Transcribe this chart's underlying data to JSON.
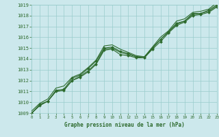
{
  "title": "Graphe pression niveau de la mer (hPa)",
  "bg_color": "#cce8ec",
  "grid_color": "#99cccc",
  "line_color": "#2d6a2d",
  "marker_color": "#2d6a2d",
  "xmin": 0,
  "xmax": 23,
  "ymin": 1009,
  "ymax": 1019,
  "series": [
    [
      1009.0,
      1009.8,
      1010.1,
      1011.1,
      1011.2,
      1012.2,
      1012.5,
      1013.1,
      1013.8,
      1015.0,
      1015.1,
      1014.7,
      1014.5,
      1014.2,
      1014.1,
      1015.0,
      1015.8,
      1016.5,
      1017.3,
      1017.5,
      1018.2,
      1018.2,
      1018.5,
      1019.0
    ],
    [
      1009.0,
      1009.7,
      1010.1,
      1011.0,
      1011.1,
      1012.0,
      1012.3,
      1012.8,
      1013.5,
      1014.8,
      1014.9,
      1014.4,
      1014.3,
      1014.1,
      1014.1,
      1014.9,
      1015.6,
      1016.4,
      1017.1,
      1017.4,
      1018.0,
      1018.1,
      1018.3,
      1018.8
    ],
    [
      1009.2,
      1009.9,
      1010.3,
      1011.3,
      1011.5,
      1012.3,
      1012.6,
      1013.2,
      1013.9,
      1015.2,
      1015.3,
      1014.9,
      1014.6,
      1014.3,
      1014.2,
      1015.1,
      1016.0,
      1016.6,
      1017.5,
      1017.7,
      1018.3,
      1018.4,
      1018.6,
      1019.2
    ],
    [
      1009.0,
      1009.7,
      1010.1,
      1011.0,
      1011.1,
      1012.0,
      1012.4,
      1012.9,
      1013.6,
      1014.9,
      1015.0,
      1014.6,
      1014.4,
      1014.2,
      1014.2,
      1015.0,
      1015.8,
      1016.5,
      1017.2,
      1017.5,
      1018.1,
      1018.2,
      1018.4,
      1018.9
    ]
  ],
  "yticks": [
    1009,
    1010,
    1011,
    1012,
    1013,
    1014,
    1015,
    1016,
    1017,
    1018,
    1019
  ],
  "xticks": [
    0,
    1,
    2,
    3,
    4,
    5,
    6,
    7,
    8,
    9,
    10,
    11,
    12,
    13,
    14,
    15,
    16,
    17,
    18,
    19,
    20,
    21,
    22,
    23
  ],
  "line_styles": [
    {
      "lw": 0.8,
      "marker": "D",
      "ms": 2.0
    },
    {
      "lw": 0.8,
      "marker": "D",
      "ms": 2.0
    },
    {
      "lw": 0.8,
      "marker": null,
      "ms": 0
    },
    {
      "lw": 0.8,
      "marker": null,
      "ms": 0
    }
  ]
}
